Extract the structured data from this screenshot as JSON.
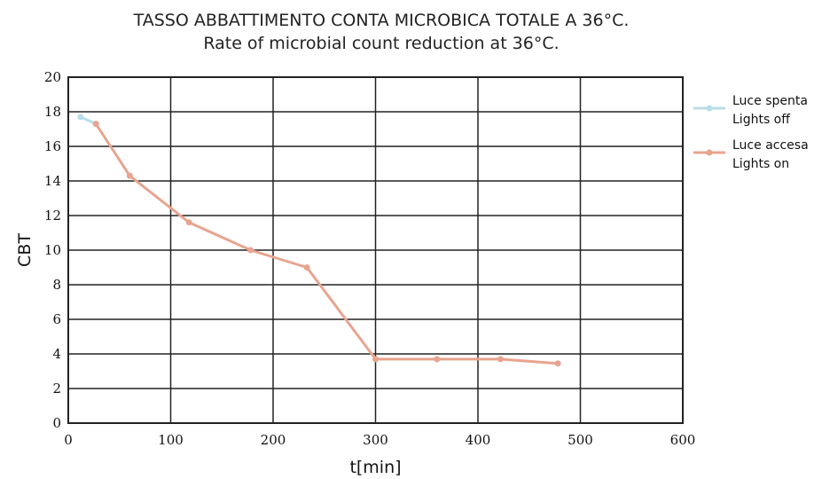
{
  "chart_data": {
    "type": "line",
    "title": "TASSO ABBATTIMENTO CONTA MICROBICA TOTALE A 36°C.",
    "subtitle": "Rate of microbial count reduction at 36°C.",
    "xlabel": "t[min]",
    "ylabel": "CBT",
    "xlim": [
      0,
      600
    ],
    "ylim": [
      0,
      20
    ],
    "x_ticks": [
      0,
      100,
      200,
      300,
      400,
      500,
      600
    ],
    "y_ticks": [
      0,
      2,
      4,
      6,
      8,
      10,
      12,
      14,
      16,
      18,
      20
    ],
    "grid": true,
    "legend_position": "right",
    "series": [
      {
        "name": "Luce spenta",
        "name_en": "Lights off",
        "color": "#b9dde8",
        "x": [
          12,
          27
        ],
        "y": [
          17.7,
          17.3
        ]
      },
      {
        "name": "Luce accesa",
        "name_en": "Lights on",
        "color": "#e8a48f",
        "x": [
          27,
          60,
          118,
          178,
          233,
          300,
          360,
          422,
          478
        ],
        "y": [
          17.3,
          14.3,
          11.6,
          10.0,
          9.0,
          3.7,
          3.7,
          3.7,
          3.45
        ]
      }
    ]
  }
}
